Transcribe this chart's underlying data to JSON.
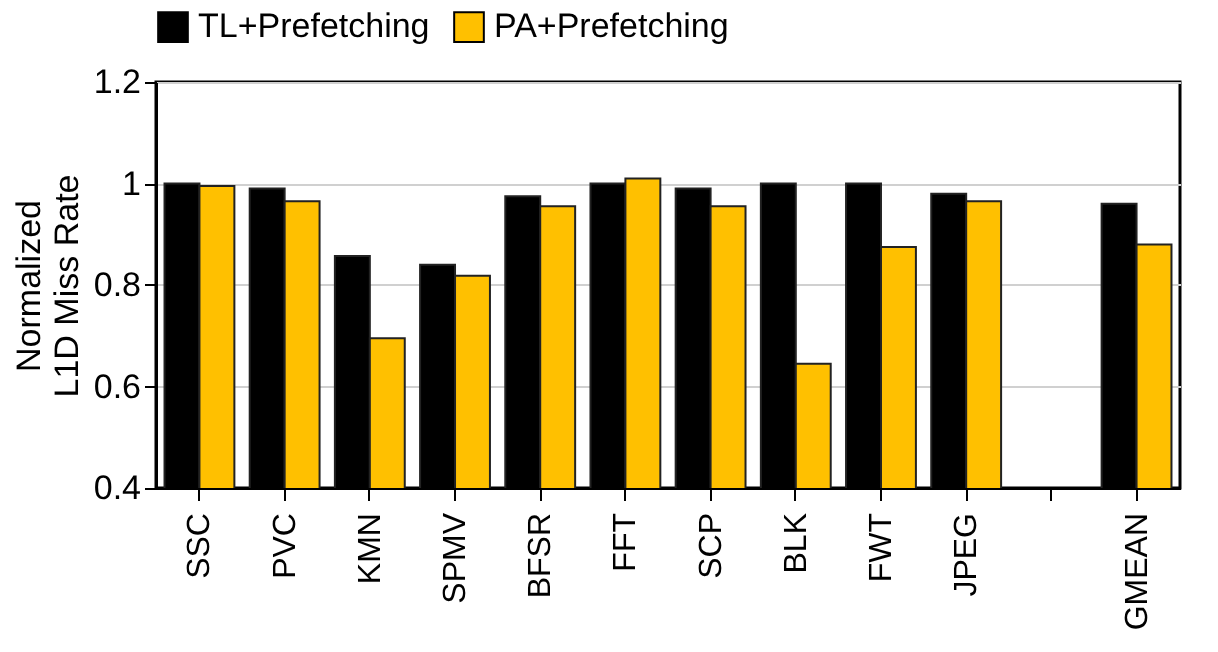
{
  "chart_data": {
    "type": "bar",
    "ylabel": "Normalized\nL1D Miss Rate",
    "categories": [
      "SSC",
      "PVC",
      "KMN",
      "SPMV",
      "BFSR",
      "FFT",
      "SCP",
      "BLK",
      "FWT",
      "JPEG",
      null,
      "GMEAN"
    ],
    "series": [
      {
        "name": "TL+Prefetching",
        "color": "#000000",
        "values": [
          1.0,
          0.99,
          0.857,
          0.84,
          0.975,
          1.0,
          0.99,
          1.0,
          1.0,
          0.98,
          null,
          0.96
        ]
      },
      {
        "name": "PA+Prefetching",
        "color": "#ffc000",
        "values": [
          0.995,
          0.965,
          0.695,
          0.818,
          0.955,
          1.01,
          0.955,
          0.645,
          0.875,
          0.965,
          null,
          0.88
        ]
      }
    ],
    "ylim": [
      0.4,
      1.2
    ],
    "yticks": [
      0.4,
      0.6,
      0.8,
      1,
      1.2
    ],
    "grid": "y",
    "legend": "top"
  }
}
